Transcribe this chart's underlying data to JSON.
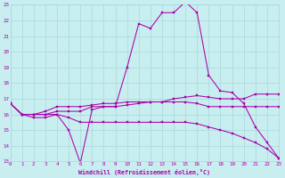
{
  "background_color": "#c8eef0",
  "grid_color": "#a8d8dc",
  "line_color": "#aa00aa",
  "xlabel": "Windchill (Refroidissement éolien,°C)",
  "xlim": [
    0,
    23
  ],
  "ylim": [
    13,
    23
  ],
  "yticks": [
    13,
    14,
    15,
    16,
    17,
    18,
    19,
    20,
    21,
    22,
    23
  ],
  "xticks": [
    0,
    1,
    2,
    3,
    4,
    5,
    6,
    7,
    8,
    9,
    10,
    11,
    12,
    13,
    14,
    15,
    16,
    17,
    18,
    19,
    20,
    21,
    22,
    23
  ],
  "series": [
    [
      16.7,
      16.0,
      15.8,
      15.8,
      16.0,
      15.0,
      12.9,
      16.3,
      16.5,
      16.5,
      19.0,
      21.8,
      21.5,
      22.5,
      22.5,
      23.2,
      22.5,
      18.5,
      17.5,
      17.4,
      16.7,
      15.2,
      14.2,
      13.2
    ],
    [
      16.7,
      16.0,
      16.0,
      16.0,
      16.2,
      16.2,
      16.2,
      16.5,
      16.5,
      16.5,
      16.6,
      16.7,
      16.8,
      16.8,
      17.0,
      17.1,
      17.2,
      17.1,
      17.0,
      17.0,
      17.0,
      17.3,
      17.3,
      17.3
    ],
    [
      16.7,
      16.0,
      16.0,
      16.0,
      16.0,
      15.8,
      15.5,
      15.5,
      15.5,
      15.5,
      15.5,
      15.5,
      15.5,
      15.5,
      15.5,
      15.5,
      15.4,
      15.2,
      15.0,
      14.8,
      14.5,
      14.2,
      13.8,
      13.2
    ],
    [
      16.7,
      16.0,
      16.0,
      16.2,
      16.5,
      16.5,
      16.5,
      16.6,
      16.7,
      16.7,
      16.8,
      16.8,
      16.8,
      16.8,
      16.8,
      16.8,
      16.7,
      16.5,
      16.5,
      16.5,
      16.5,
      16.5,
      16.5,
      16.5
    ]
  ]
}
